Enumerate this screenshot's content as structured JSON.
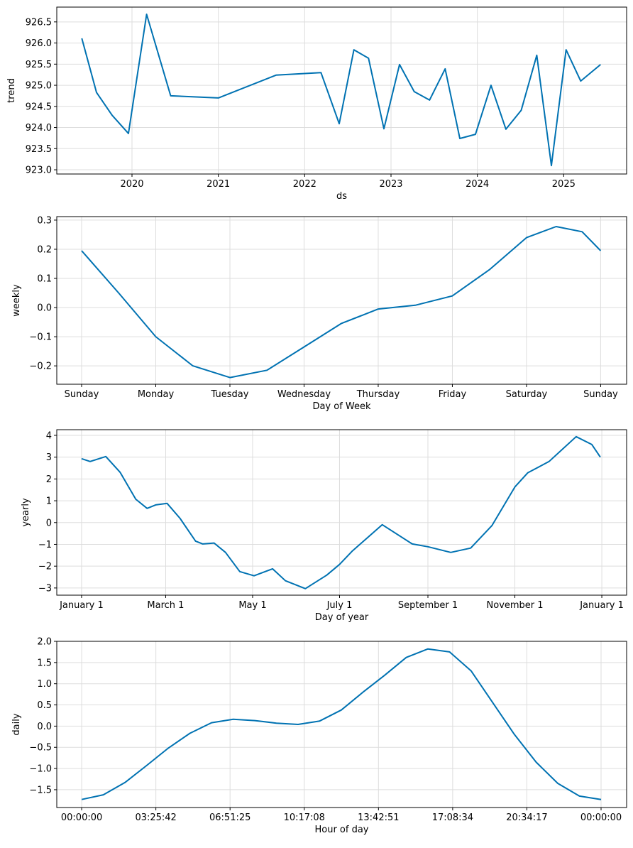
{
  "line_color": "#0072B2",
  "grid_color": "#dddddd",
  "chart_data": [
    {
      "type": "line",
      "xlabel": "ds",
      "ylabel": "trend",
      "x_kind": "date",
      "xlim": [
        "2019-02-17",
        "2025-09-24"
      ],
      "ylim": [
        922.9,
        926.85
      ],
      "grid": true,
      "x_ticks": [
        {
          "value": "2020-01-01",
          "label": "2020"
        },
        {
          "value": "2021-01-01",
          "label": "2021"
        },
        {
          "value": "2022-01-01",
          "label": "2022"
        },
        {
          "value": "2023-01-01",
          "label": "2023"
        },
        {
          "value": "2024-01-01",
          "label": "2024"
        },
        {
          "value": "2025-01-01",
          "label": "2025"
        }
      ],
      "y_ticks": [
        {
          "value": 923.0,
          "label": "923.0"
        },
        {
          "value": 923.5,
          "label": "923.5"
        },
        {
          "value": 924.0,
          "label": "924.0"
        },
        {
          "value": 924.5,
          "label": "924.5"
        },
        {
          "value": 925.0,
          "label": "925.0"
        },
        {
          "value": 925.5,
          "label": "925.5"
        },
        {
          "value": 926.0,
          "label": "926.0"
        },
        {
          "value": 926.5,
          "label": "926.5"
        }
      ],
      "x": [
        "2019-06-03",
        "2019-08-04",
        "2019-10-09",
        "2019-12-17",
        "2020-03-03",
        "2020-06-13",
        "2021-01-01",
        "2021-09-02",
        "2022-03-11",
        "2022-05-27",
        "2022-07-28",
        "2022-09-28",
        "2022-12-02",
        "2023-02-06",
        "2023-04-09",
        "2023-06-13",
        "2023-08-18",
        "2023-10-19",
        "2023-12-24",
        "2024-02-28",
        "2024-05-01",
        "2024-07-05",
        "2024-09-09",
        "2024-11-10",
        "2025-01-11",
        "2025-03-14",
        "2025-06-06"
      ],
      "y": [
        926.11,
        924.83,
        924.29,
        923.86,
        926.68,
        924.75,
        924.7,
        925.24,
        925.3,
        924.09,
        925.84,
        925.64,
        923.97,
        925.49,
        924.85,
        924.65,
        925.39,
        923.74,
        923.84,
        925.0,
        923.96,
        924.41,
        925.71,
        923.1,
        925.84,
        925.1,
        925.49
      ]
    },
    {
      "type": "line",
      "xlabel": "Day of Week",
      "ylabel": "weekly",
      "x_kind": "day",
      "xlim": [
        -0.335,
        7.35
      ],
      "ylim": [
        -0.263,
        0.312
      ],
      "grid": true,
      "x_ticks": [
        {
          "value": 0,
          "label": "Sunday"
        },
        {
          "value": 1,
          "label": "Monday"
        },
        {
          "value": 2,
          "label": "Tuesday"
        },
        {
          "value": 3,
          "label": "Wednesday"
        },
        {
          "value": 4,
          "label": "Thursday"
        },
        {
          "value": 5,
          "label": "Friday"
        },
        {
          "value": 6,
          "label": "Saturday"
        },
        {
          "value": 7,
          "label": "Sunday"
        }
      ],
      "y_ticks": [
        {
          "value": -0.2,
          "label": "−0.2"
        },
        {
          "value": -0.1,
          "label": "−0.1"
        },
        {
          "value": 0.0,
          "label": "0.0"
        },
        {
          "value": 0.1,
          "label": "0.1"
        },
        {
          "value": 0.2,
          "label": "0.2"
        },
        {
          "value": 0.3,
          "label": "0.3"
        }
      ],
      "x": [
        0,
        0.5,
        1,
        1.5,
        2,
        2.5,
        3,
        3.5,
        4,
        4.5,
        5,
        5.5,
        6,
        6.4,
        6.75,
        7
      ],
      "y": [
        0.195,
        0.05,
        -0.1,
        -0.2,
        -0.24,
        -0.215,
        -0.135,
        -0.055,
        -0.005,
        0.008,
        0.04,
        0.13,
        0.24,
        0.278,
        0.26,
        0.195
      ]
    },
    {
      "type": "line",
      "xlabel": "Day of year",
      "ylabel": "yearly",
      "x_kind": "month-day",
      "xlim": [
        -17.4,
        382.4
      ],
      "ylim": [
        -3.33,
        4.26
      ],
      "grid": true,
      "x_ticks": [
        {
          "value": "01-01",
          "label": "January 1"
        },
        {
          "value": "03-01",
          "label": "March 1"
        },
        {
          "value": "05-01",
          "label": "May 1"
        },
        {
          "value": "07-01",
          "label": "July 1"
        },
        {
          "value": "09-01",
          "label": "September 1"
        },
        {
          "value": "11-01",
          "label": "November 1"
        },
        {
          "value": "01-01+",
          "label": "January 1"
        }
      ],
      "y_ticks": [
        {
          "value": -3,
          "label": "−3"
        },
        {
          "value": -2,
          "label": "−2"
        },
        {
          "value": -1,
          "label": "−1"
        },
        {
          "value": 0,
          "label": "0"
        },
        {
          "value": 1,
          "label": "1"
        },
        {
          "value": 2,
          "label": "2"
        },
        {
          "value": 3,
          "label": "3"
        },
        {
          "value": 4,
          "label": "4"
        }
      ],
      "x": [
        "01-01",
        "01-07",
        "01-18",
        "01-28",
        "02-08",
        "02-16",
        "02-22",
        "03-02",
        "03-11",
        "03-22",
        "03-27",
        "04-04",
        "04-12",
        "04-22",
        "05-02",
        "05-15",
        "05-24",
        "06-07",
        "06-22",
        "07-01",
        "07-10",
        "07-31",
        "08-21",
        "09-01",
        "09-17",
        "10-01",
        "10-16",
        "11-01",
        "11-10",
        "11-25",
        "12-14",
        "12-25",
        "12-31"
      ],
      "y": [
        2.93,
        2.8,
        3.03,
        2.31,
        1.07,
        0.65,
        0.81,
        0.88,
        0.2,
        -0.85,
        -0.98,
        -0.94,
        -1.37,
        -2.25,
        -2.44,
        -2.12,
        -2.67,
        -3.03,
        -2.41,
        -1.92,
        -1.3,
        -0.1,
        -0.98,
        -1.11,
        -1.37,
        -1.17,
        -0.13,
        1.63,
        2.28,
        2.8,
        3.94,
        3.58,
        3.0
      ]
    },
    {
      "type": "line",
      "xlabel": "Hour of day",
      "ylabel": "daily",
      "x_kind": "hour",
      "xlim": [
        -1.15,
        25.18
      ],
      "ylim": [
        -1.92,
        2.0
      ],
      "grid": true,
      "x_ticks": [
        {
          "value": 0,
          "label": "00:00:00"
        },
        {
          "value": 3.4286,
          "label": "03:25:42"
        },
        {
          "value": 6.8571,
          "label": "06:51:25"
        },
        {
          "value": 10.2857,
          "label": "10:17:08"
        },
        {
          "value": 13.7143,
          "label": "13:42:51"
        },
        {
          "value": 17.1429,
          "label": "17:08:34"
        },
        {
          "value": 20.5714,
          "label": "20:34:17"
        },
        {
          "value": 24,
          "label": "00:00:00"
        }
      ],
      "y_ticks": [
        {
          "value": -1.5,
          "label": "−1.5"
        },
        {
          "value": -1.0,
          "label": "−1.0"
        },
        {
          "value": -0.5,
          "label": "−0.5"
        },
        {
          "value": 0.0,
          "label": "0.0"
        },
        {
          "value": 0.5,
          "label": "0.5"
        },
        {
          "value": 1.0,
          "label": "1.0"
        },
        {
          "value": 1.5,
          "label": "1.5"
        },
        {
          "value": 2.0,
          "label": "2.0"
        }
      ],
      "x": [
        0,
        1,
        2,
        3,
        4,
        5,
        6,
        7,
        8,
        9,
        10,
        11,
        12,
        13,
        14,
        15,
        16,
        17,
        18,
        19,
        20,
        21,
        22,
        23,
        24
      ],
      "y": [
        -1.73,
        -1.62,
        -1.33,
        -0.93,
        -0.52,
        -0.17,
        0.08,
        0.16,
        0.13,
        0.07,
        0.04,
        0.12,
        0.38,
        0.8,
        1.2,
        1.62,
        1.82,
        1.75,
        1.3,
        0.55,
        -0.2,
        -0.85,
        -1.35,
        -1.65,
        -1.73
      ]
    }
  ]
}
